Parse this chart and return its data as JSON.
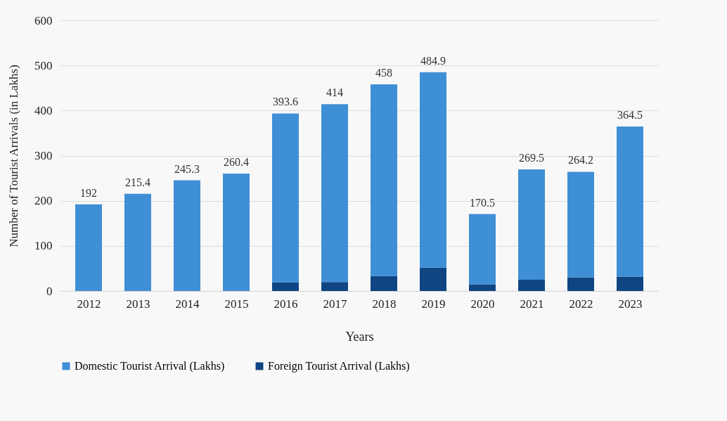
{
  "chart_data": {
    "type": "bar",
    "xlabel": "Years",
    "ylabel": "Number of Tourist Arrivals (in Lakhs)",
    "categories": [
      "2012",
      "2013",
      "2014",
      "2015",
      "2016",
      "2017",
      "2018",
      "2019",
      "2020",
      "2021",
      "2022",
      "2023"
    ],
    "stacked": true,
    "series": [
      {
        "name": "Foreign Tourist Arrival (Lakhs)",
        "color": "#0f4583",
        "values": [
          0,
          0,
          0,
          0,
          19,
          20,
          33,
          52,
          15,
          25,
          30,
          32
        ]
      },
      {
        "name": "Domestic Tourist Arrival (Lakhs)",
        "color": "#3f8fd6",
        "values": [
          192,
          215.4,
          245.3,
          260.4,
          374.6,
          394,
          425,
          432.9,
          155.5,
          244.5,
          234.2,
          332.5
        ]
      }
    ],
    "totals": [
      "192",
      "215.4",
      "245.3",
      "260.4",
      "393.6",
      "414",
      "458",
      "484.9",
      "170.5",
      "269.5",
      "264.2",
      "364.5"
    ],
    "ylim": [
      0,
      600
    ],
    "yticks": [
      0,
      100,
      200,
      300,
      400,
      500,
      600
    ],
    "grid": "y",
    "legend": "bottom"
  }
}
